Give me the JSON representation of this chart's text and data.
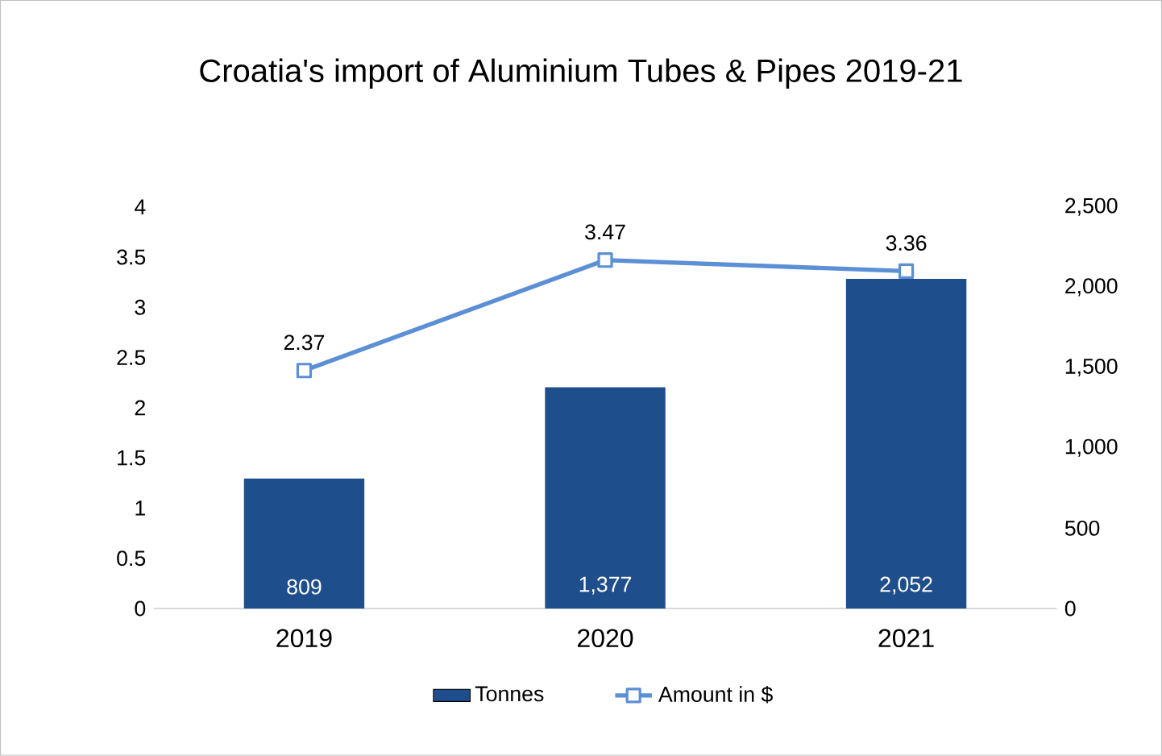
{
  "chart_data": {
    "type": "bar",
    "title": "Croatia's import of Aluminium Tubes & Pipes 2019-21",
    "categories": [
      "2019",
      "2020",
      "2021"
    ],
    "series": [
      {
        "name": "Tonnes",
        "axis": "y2",
        "color": "#1f4e8c",
        "values": [
          809,
          1377,
          2052
        ],
        "value_labels": [
          "809",
          "1,377",
          "2,052"
        ]
      },
      {
        "name": "Amount in $",
        "type": "line",
        "color": "#5b8fd6",
        "values": [
          2.37,
          3.47,
          3.36
        ],
        "value_labels": [
          "2.37",
          "3.47",
          "3.36"
        ]
      }
    ],
    "ylim": [
      0,
      4
    ],
    "yticks": [
      0,
      0.5,
      1,
      1.5,
      2,
      2.5,
      3,
      3.5,
      4
    ],
    "y2lim": [
      0,
      2500
    ],
    "y2ticks": [
      0,
      500,
      {
        "value": 1000,
        "label": "1,000"
      },
      {
        "value": 1500,
        "label": "1,500"
      },
      {
        "value": 2000,
        "label": "2,000"
      },
      {
        "value": 2500,
        "label": "2,500"
      }
    ],
    "marker": "square",
    "legend": "bottom"
  }
}
